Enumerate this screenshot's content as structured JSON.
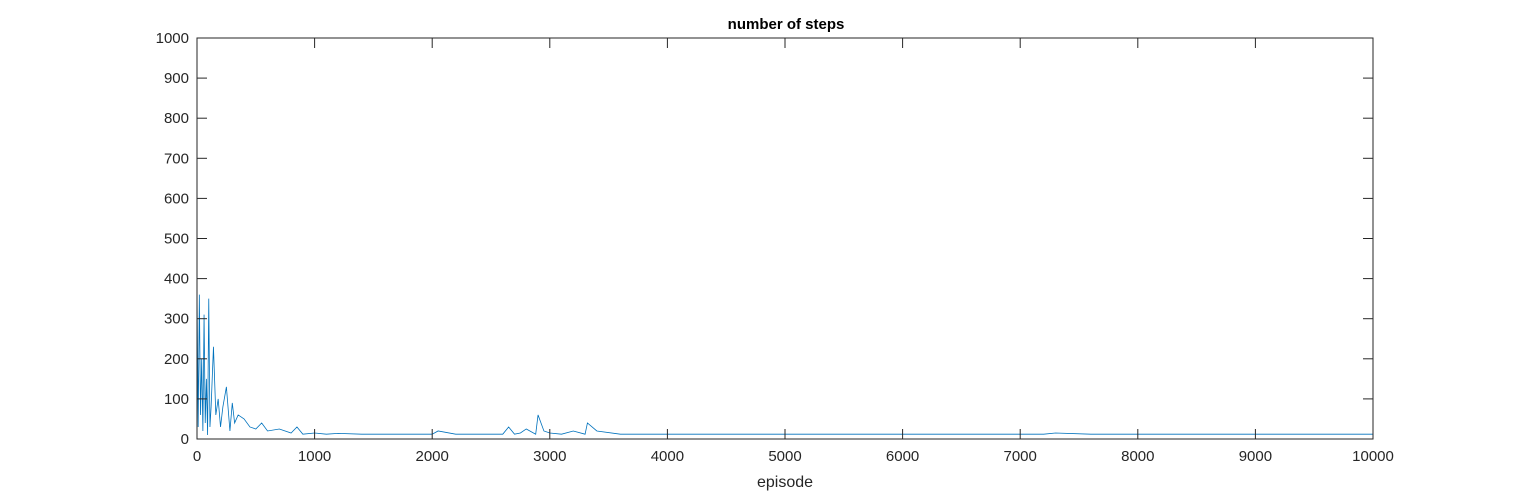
{
  "chart_data": {
    "type": "line",
    "title": "number of steps",
    "xlabel": "episode",
    "ylabel": "",
    "xlim": [
      0,
      10000
    ],
    "ylim": [
      0,
      1000
    ],
    "xticks": [
      0,
      1000,
      2000,
      3000,
      4000,
      5000,
      6000,
      7000,
      8000,
      9000,
      10000
    ],
    "yticks": [
      0,
      100,
      200,
      300,
      400,
      500,
      600,
      700,
      800,
      900,
      1000
    ],
    "grid": false,
    "series_color": "#0072BD",
    "series": [
      {
        "x": [
          0,
          10,
          20,
          30,
          40,
          50,
          60,
          70,
          80,
          90,
          100,
          110,
          120,
          140,
          160,
          180,
          200,
          220,
          250,
          280,
          300,
          320,
          350,
          400,
          450,
          500,
          550,
          600,
          700,
          800,
          850,
          900,
          1000,
          1100,
          1200,
          1400,
          1600,
          1800,
          2000,
          2050,
          2200,
          2400,
          2600,
          2650,
          2700,
          2750,
          2800,
          2880,
          2900,
          2950,
          3000,
          3100,
          3200,
          3300,
          3320,
          3400,
          3600,
          3800,
          4000,
          4400,
          4800,
          5200,
          5600,
          6000,
          6400,
          6800,
          7200,
          7300,
          7600,
          8000,
          8400,
          8800,
          9200,
          9600,
          10000
        ],
        "y": [
          370,
          30,
          360,
          60,
          200,
          20,
          310,
          40,
          150,
          10,
          350,
          30,
          80,
          230,
          60,
          100,
          30,
          80,
          130,
          20,
          90,
          40,
          60,
          50,
          30,
          25,
          40,
          20,
          25,
          15,
          30,
          12,
          15,
          12,
          14,
          12,
          12,
          12,
          12,
          20,
          12,
          12,
          12,
          30,
          12,
          15,
          25,
          12,
          60,
          20,
          15,
          12,
          20,
          12,
          40,
          20,
          12,
          12,
          12,
          12,
          12,
          12,
          12,
          12,
          12,
          12,
          12,
          15,
          12,
          12,
          12,
          12,
          12,
          12,
          12
        ]
      }
    ]
  }
}
